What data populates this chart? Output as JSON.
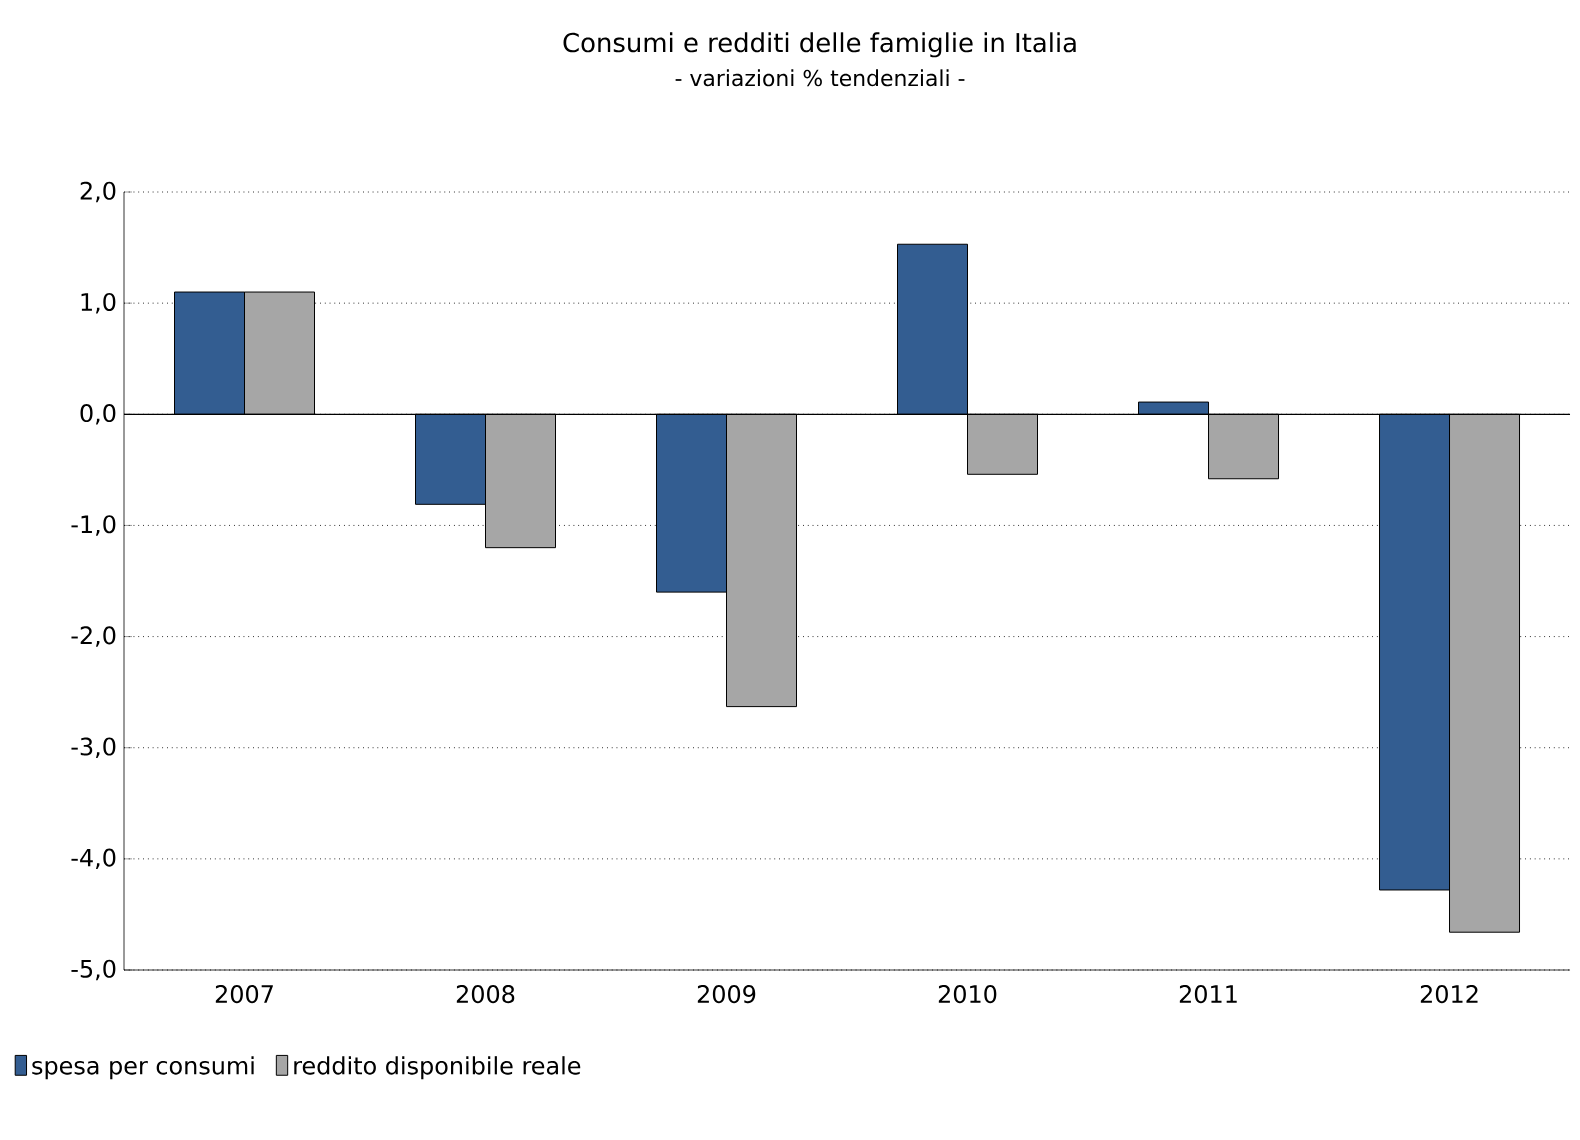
{
  "chart_data": {
    "type": "bar",
    "title": "Consumi e redditi delle famiglie in Italia",
    "subtitle": "- variazioni % tendenziali -",
    "categories": [
      "2007",
      "2008",
      "2009",
      "2010",
      "2011",
      "2012"
    ],
    "series": [
      {
        "name": "spesa per consumi",
        "color": "#335d91",
        "values": [
          1.1,
          -0.81,
          -1.6,
          1.53,
          0.11,
          -4.28
        ]
      },
      {
        "name": "reddito disponibile reale",
        "color": "#a6a6a6",
        "values": [
          1.1,
          -1.2,
          -2.63,
          -0.54,
          -0.58,
          -4.66
        ]
      }
    ],
    "ylim": [
      -5,
      2
    ],
    "yticks": [
      {
        "value": -5,
        "label": "-5,0"
      },
      {
        "value": -4,
        "label": "-4,0"
      },
      {
        "value": -3,
        "label": "-3,0"
      },
      {
        "value": -2,
        "label": "-2,0"
      },
      {
        "value": -1,
        "label": "-1,0"
      },
      {
        "value": 0,
        "label": "0,0"
      },
      {
        "value": 1,
        "label": "1,0"
      },
      {
        "value": 2,
        "label": "2,0"
      }
    ],
    "grid": "y",
    "legend": "bottom left"
  }
}
